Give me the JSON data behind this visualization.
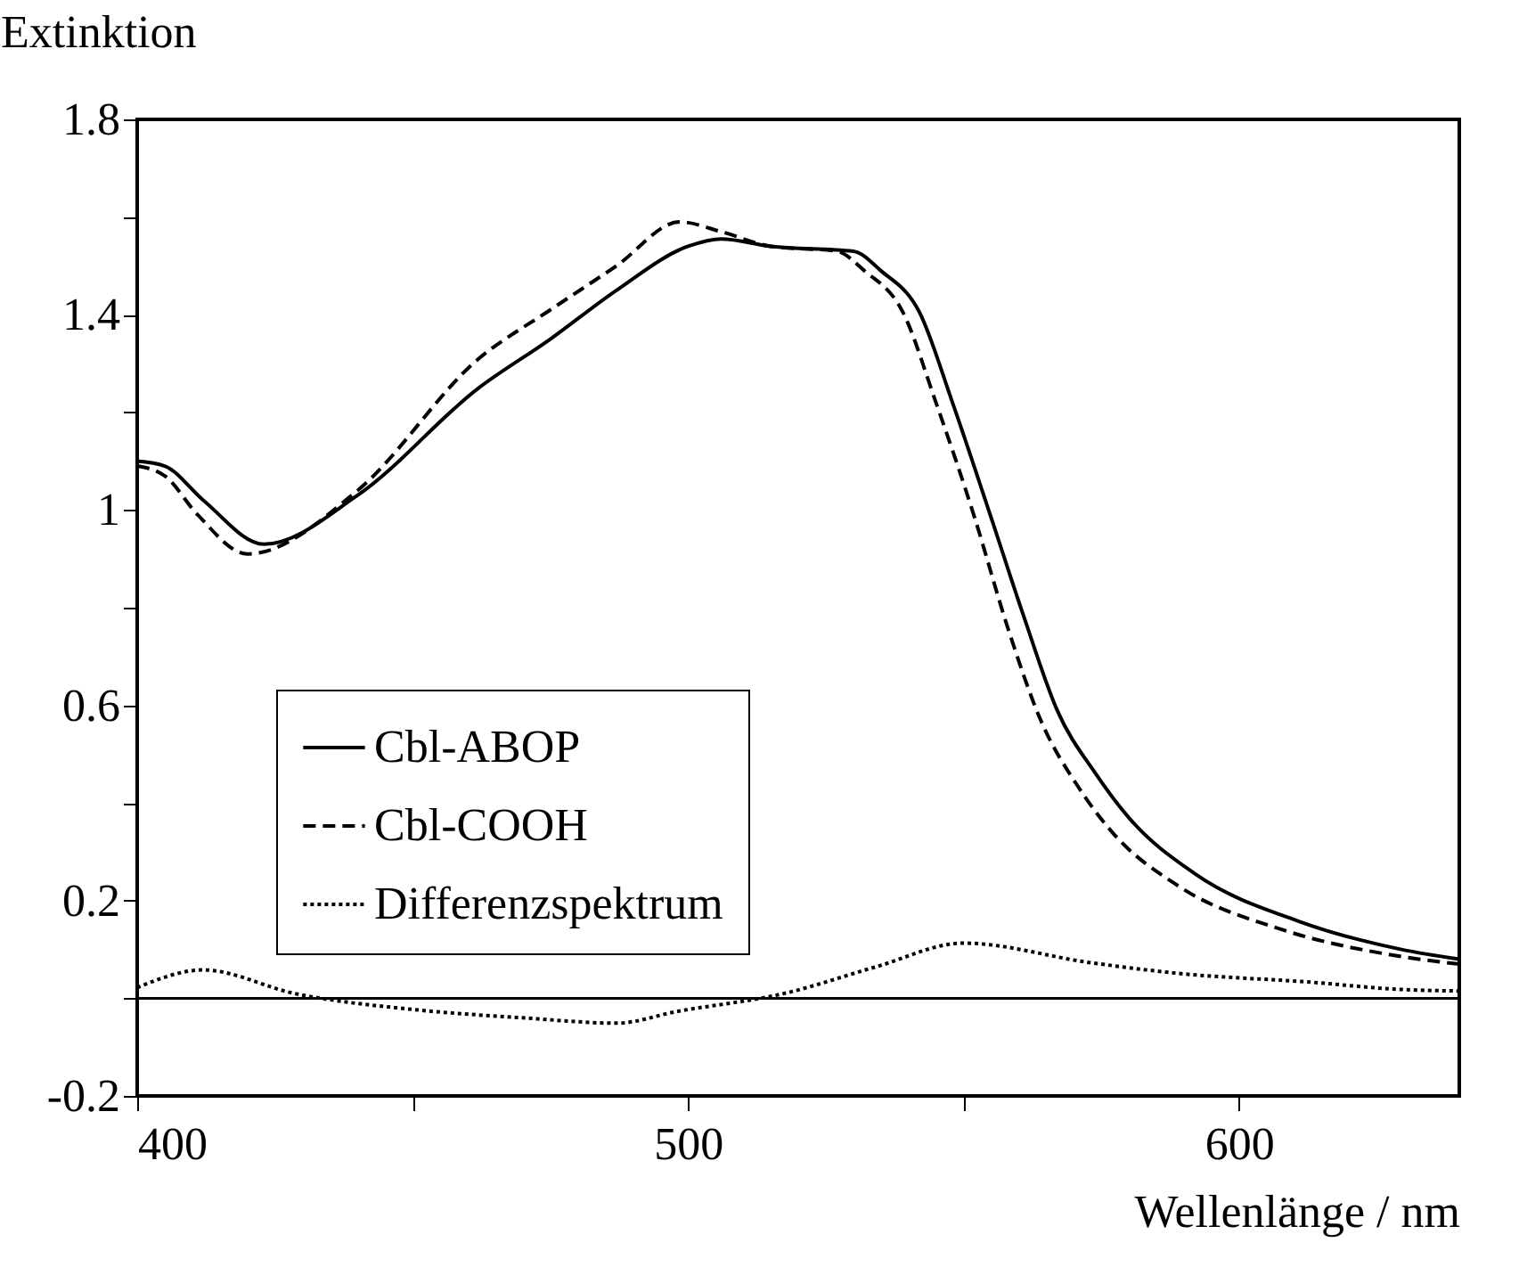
{
  "chart_data": {
    "type": "line",
    "xlabel": "Wellenlänge / nm",
    "ylabel": "Extinktion",
    "xlim": [
      400,
      640
    ],
    "ylim": [
      -0.2,
      1.8
    ],
    "xticks": [
      400,
      {
        "value": 450,
        "label": null
      },
      500,
      {
        "value": 550,
        "label": null
      },
      600
    ],
    "yticks": [
      -0.2,
      {
        "value": 0,
        "label": null
      },
      0.2,
      {
        "value": 0.4,
        "label": null
      },
      0.6,
      {
        "value": 0.8,
        "label": null
      },
      1,
      {
        "value": 1.2,
        "label": null
      },
      1.4,
      {
        "value": 1.6,
        "label": null
      },
      1.8
    ],
    "grid": false,
    "legend": "bottom left",
    "marker": "none",
    "ref_lines": [
      {
        "axis": "y",
        "value": 0,
        "color": "#000000",
        "line_style": "solid"
      }
    ],
    "series": [
      {
        "name": "Cbl-ABOP",
        "color": "#000000",
        "line_style": "solid",
        "x": [
          400,
          405,
          412,
          423,
          440,
          462,
          475,
          487,
          500,
          506,
          515,
          530,
          535,
          542,
          548,
          555,
          561,
          567,
          574,
          580,
          592,
          611,
          629.5,
          640
        ],
        "values": [
          1.1,
          1.09,
          1.02,
          0.93,
          1.03,
          1.25,
          1.35,
          1.45,
          1.54,
          1.555,
          1.54,
          1.53,
          1.49,
          1.405,
          1.22,
          0.985,
          0.78,
          0.59,
          0.46,
          0.37,
          0.255,
          0.157,
          0.1,
          0.08
        ]
      },
      {
        "name": "Cbl-COOH",
        "color": "#000000",
        "line_style": "dashed",
        "x": [
          400,
          405,
          411,
          420,
          440,
          462,
          475,
          487,
          498.5,
          506,
          515,
          527,
          532,
          539,
          545,
          552,
          558,
          564,
          571,
          577,
          589,
          608,
          627,
          640
        ],
        "values": [
          1.09,
          1.07,
          0.99,
          0.91,
          1.04,
          1.31,
          1.41,
          1.5,
          1.59,
          1.57,
          1.54,
          1.53,
          1.49,
          1.405,
          1.22,
          0.985,
          0.76,
          0.57,
          0.43,
          0.34,
          0.23,
          0.14,
          0.09,
          0.07
        ]
      },
      {
        "name": "Differenzspektrum",
        "color": "#000000",
        "line_style": "dotted",
        "x": [
          400,
          412,
          428.5,
          451,
          470,
          487,
          498,
          517.5,
          534,
          550,
          573,
          589,
          613,
          629.5,
          640
        ],
        "values": [
          0.022,
          0.058,
          0.01,
          -0.024,
          -0.04,
          -0.051,
          -0.027,
          0.01,
          0.064,
          0.113,
          0.073,
          0.051,
          0.033,
          0.018,
          0.015
        ]
      }
    ]
  }
}
